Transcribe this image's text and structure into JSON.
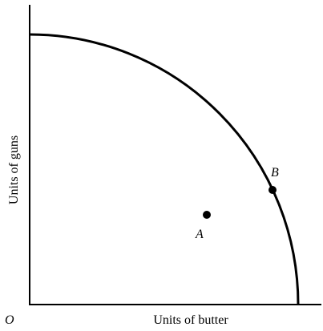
{
  "axes": {
    "x_label": "Units of butter",
    "y_label": "Units of guns",
    "origin": "O"
  },
  "points": [
    {
      "label": "A"
    },
    {
      "label": "B"
    }
  ]
}
